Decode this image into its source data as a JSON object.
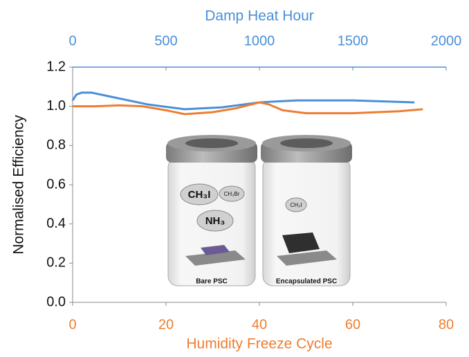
{
  "chart_data": {
    "type": "line",
    "ylabel": "Normalised Efficiency",
    "xlabel": "Humidity Freeze Cycle",
    "x2label": "Damp Heat Hour",
    "ylim": [
      0,
      1.2
    ],
    "yticks": [
      {
        "value": 0,
        "label": "0.0"
      },
      0.2,
      0.4,
      0.6,
      0.8,
      {
        "value": 1,
        "label": "1.0"
      },
      1.2
    ],
    "xlim": [
      0,
      80
    ],
    "xticks": [
      0,
      20,
      40,
      60,
      80
    ],
    "x2lim": [
      0,
      2000
    ],
    "x2ticks": [
      0,
      500,
      1000,
      1500,
      2000
    ],
    "series": [
      {
        "color": "#4a8fd6",
        "xaxis": "x2",
        "x": [
          0,
          20,
          50,
          100,
          200,
          400,
          600,
          800,
          1000,
          1200,
          1500,
          1830
        ],
        "values": [
          1.03,
          1.06,
          1.07,
          1.07,
          1.05,
          1.01,
          0.985,
          0.995,
          1.02,
          1.03,
          1.03,
          1.02
        ]
      },
      {
        "color": "#ed7d31",
        "xaxis": "x",
        "x": [
          0,
          5,
          10,
          15,
          20,
          24,
          30,
          35,
          40,
          42,
          45,
          50,
          60,
          70,
          75
        ],
        "values": [
          1.0,
          1.0,
          1.005,
          1.0,
          0.98,
          0.96,
          0.97,
          0.99,
          1.02,
          1.01,
          0.98,
          0.965,
          0.965,
          0.975,
          0.985
        ]
      }
    ],
    "annotations": [
      "CH₃I",
      "CH₃Br",
      "NH₃",
      "CH₃I",
      "Bare PSC",
      "Encapsulated PSC"
    ]
  }
}
